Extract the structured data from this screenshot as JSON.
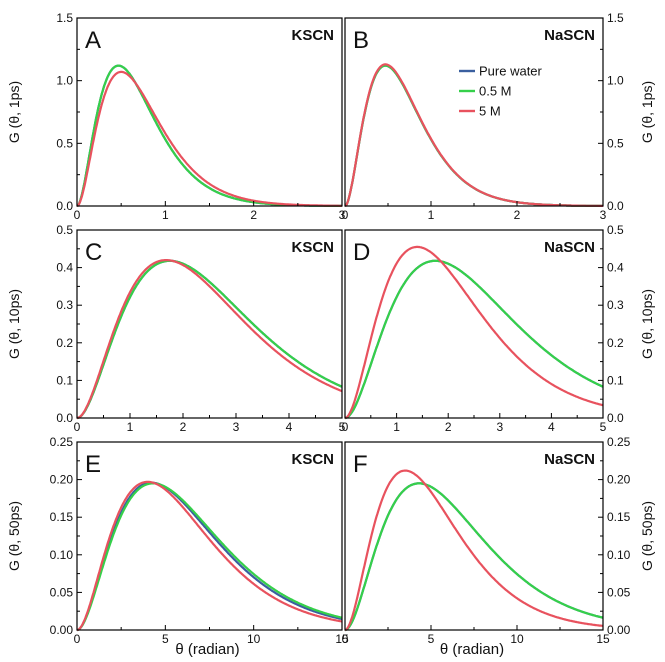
{
  "x_axis_label": "θ (radian)",
  "series_colors": {
    "pure_water": "#3a5f9f",
    "m05": "#35d04a",
    "m5": "#e8525e"
  },
  "legend": {
    "placement": "top-right of panel B",
    "entries": [
      "Pure water",
      "0.5 M",
      "5 M"
    ]
  },
  "chart_data": [
    {
      "panel": "A",
      "salt": "KSCN",
      "type": "line",
      "ylabel": "G (θ, 1ps)",
      "xlim": [
        0,
        3
      ],
      "ylim": [
        0,
        1.5
      ],
      "xticks": [
        0,
        1,
        2,
        3
      ],
      "xtick_labels": [
        "0",
        "1",
        "2",
        "3"
      ],
      "yticks": [
        0,
        0.5,
        1.0,
        1.5
      ],
      "ytick_labels": [
        "0.0",
        "0.5",
        "1.0",
        "1.5"
      ],
      "series": [
        {
          "name": "Pure water",
          "peak_x": 0.47,
          "peak_y": 1.12
        },
        {
          "name": "0.5 M",
          "peak_x": 0.47,
          "peak_y": 1.12
        },
        {
          "name": "5 M",
          "peak_x": 0.5,
          "peak_y": 1.07
        }
      ]
    },
    {
      "panel": "B",
      "salt": "NaSCN",
      "type": "line",
      "ylabel": "G (θ, 1ps)",
      "xlim": [
        0,
        3
      ],
      "ylim": [
        0,
        1.5
      ],
      "xticks": [
        0,
        1,
        2,
        3
      ],
      "xtick_labels": [
        "0",
        "1",
        "2",
        "3"
      ],
      "yticks": [
        0,
        0.5,
        1.0,
        1.5
      ],
      "ytick_labels": [
        "0.0",
        "0.5",
        "1.0",
        "1.5"
      ],
      "series": [
        {
          "name": "Pure water",
          "peak_x": 0.47,
          "peak_y": 1.12
        },
        {
          "name": "0.5 M",
          "peak_x": 0.47,
          "peak_y": 1.12
        },
        {
          "name": "5 M",
          "peak_x": 0.47,
          "peak_y": 1.13
        }
      ]
    },
    {
      "panel": "C",
      "salt": "KSCN",
      "type": "line",
      "ylabel": "G (θ, 10ps)",
      "xlim": [
        0,
        5
      ],
      "ylim": [
        0,
        0.5
      ],
      "xticks": [
        0,
        1,
        2,
        3,
        4,
        5
      ],
      "xtick_labels": [
        "0",
        "1",
        "2",
        "3",
        "4",
        "5"
      ],
      "yticks": [
        0,
        0.1,
        0.2,
        0.3,
        0.4,
        0.5
      ],
      "ytick_labels": [
        "0.0",
        "0.1",
        "0.2",
        "0.3",
        "0.4",
        "0.5"
      ],
      "series": [
        {
          "name": "Pure water",
          "peak_x": 1.75,
          "peak_y": 0.418
        },
        {
          "name": "0.5 M",
          "peak_x": 1.75,
          "peak_y": 0.418
        },
        {
          "name": "5 M",
          "peak_x": 1.68,
          "peak_y": 0.42
        }
      ]
    },
    {
      "panel": "D",
      "salt": "NaSCN",
      "type": "line",
      "ylabel": "G (θ, 10ps)",
      "xlim": [
        0,
        5
      ],
      "ylim": [
        0,
        0.5
      ],
      "xticks": [
        0,
        1,
        2,
        3,
        4,
        5
      ],
      "xtick_labels": [
        "0",
        "1",
        "2",
        "3",
        "4",
        "5"
      ],
      "yticks": [
        0,
        0.1,
        0.2,
        0.3,
        0.4,
        0.5
      ],
      "ytick_labels": [
        "0.0",
        "0.1",
        "0.2",
        "0.3",
        "0.4",
        "0.5"
      ],
      "series": [
        {
          "name": "Pure water",
          "peak_x": 1.75,
          "peak_y": 0.418
        },
        {
          "name": "0.5 M",
          "peak_x": 1.75,
          "peak_y": 0.418
        },
        {
          "name": "5 M",
          "peak_x": 1.4,
          "peak_y": 0.455
        }
      ]
    },
    {
      "panel": "E",
      "salt": "KSCN",
      "type": "line",
      "ylabel": "G (θ, 50ps)",
      "xlim": [
        0,
        15
      ],
      "ylim": [
        0,
        0.25
      ],
      "xticks": [
        0,
        5,
        10,
        15
      ],
      "xtick_labels": [
        "0",
        "5",
        "10",
        "15"
      ],
      "yticks": [
        0,
        0.05,
        0.1,
        0.15,
        0.2,
        0.25
      ],
      "ytick_labels": [
        "0.00",
        "0.05",
        "0.10",
        "0.15",
        "0.20",
        "0.25"
      ],
      "series": [
        {
          "name": "Pure water",
          "peak_x": 4.2,
          "peak_y": 0.196
        },
        {
          "name": "0.5 M",
          "peak_x": 4.3,
          "peak_y": 0.195
        },
        {
          "name": "5 M",
          "peak_x": 4.0,
          "peak_y": 0.197
        }
      ]
    },
    {
      "panel": "F",
      "salt": "NaSCN",
      "type": "line",
      "ylabel": "G (θ, 50ps)",
      "xlim": [
        0,
        15
      ],
      "ylim": [
        0,
        0.25
      ],
      "xticks": [
        0,
        5,
        10,
        15
      ],
      "xtick_labels": [
        "0",
        "5",
        "10",
        "15"
      ],
      "yticks": [
        0,
        0.05,
        0.1,
        0.15,
        0.2,
        0.25
      ],
      "ytick_labels": [
        "0.00",
        "0.05",
        "0.10",
        "0.15",
        "0.20",
        "0.25"
      ],
      "series": [
        {
          "name": "Pure water",
          "peak_x": 4.3,
          "peak_y": 0.195
        },
        {
          "name": "0.5 M",
          "peak_x": 4.3,
          "peak_y": 0.195
        },
        {
          "name": "5 M",
          "peak_x": 3.5,
          "peak_y": 0.212
        }
      ]
    }
  ]
}
